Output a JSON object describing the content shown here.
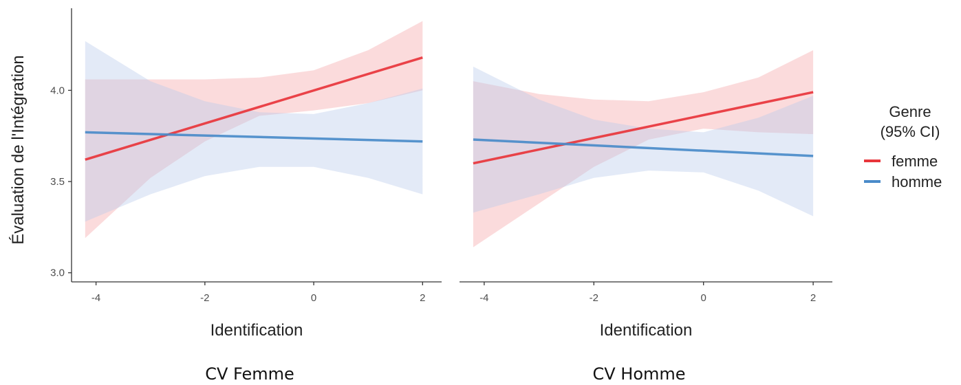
{
  "chart_data": {
    "type": "line",
    "ylabel": "Évaluation de l'Intégration",
    "ylim": [
      2.95,
      4.45
    ],
    "xlim": [
      -4.45,
      2.35
    ],
    "x_ticks": [
      "-4",
      "-2",
      "0",
      "2"
    ],
    "y_ticks": [
      "3.0",
      "3.5",
      "4.0"
    ],
    "legend": {
      "title": [
        "Genre",
        "(95% CI)"
      ],
      "placement": "right",
      "entries": [
        {
          "label": "femme",
          "color": "#e8353b"
        },
        {
          "label": "homme",
          "color": "#4a8bc9"
        }
      ]
    },
    "panels": [
      {
        "xlabel": "Identification",
        "caption": "CV Femme",
        "series": [
          {
            "name": "femme",
            "color": "#e8353b",
            "fill": "#f4a6a8",
            "x": [
              -4.2,
              2.0
            ],
            "y": [
              3.62,
              4.18
            ],
            "ci": {
              "x": [
                -4.2,
                -3,
                -2,
                -1,
                0,
                1,
                2
              ],
              "lower": [
                3.19,
                3.52,
                3.72,
                3.86,
                3.89,
                3.93,
                4.0
              ],
              "upper": [
                4.06,
                4.06,
                4.06,
                4.07,
                4.11,
                4.22,
                4.38
              ]
            }
          },
          {
            "name": "homme",
            "color": "#4a8bc9",
            "fill": "#b9cbec",
            "x": [
              -4.2,
              2.0
            ],
            "y": [
              3.77,
              3.72
            ],
            "ci": {
              "x": [
                -4.2,
                -3,
                -2,
                -1,
                0,
                1,
                2
              ],
              "lower": [
                3.28,
                3.43,
                3.53,
                3.58,
                3.58,
                3.52,
                3.43
              ],
              "upper": [
                4.27,
                4.05,
                3.94,
                3.88,
                3.87,
                3.93,
                4.01
              ]
            }
          }
        ]
      },
      {
        "xlabel": "Identification",
        "caption": "CV Homme",
        "series": [
          {
            "name": "femme",
            "color": "#e8353b",
            "fill": "#f4a6a8",
            "x": [
              -4.2,
              2.0
            ],
            "y": [
              3.6,
              3.99
            ],
            "ci": {
              "x": [
                -4.2,
                -3,
                -2,
                -1,
                0,
                1,
                2
              ],
              "lower": [
                3.14,
                3.38,
                3.58,
                3.73,
                3.79,
                3.77,
                3.76
              ],
              "upper": [
                4.05,
                3.98,
                3.95,
                3.94,
                3.99,
                4.07,
                4.22
              ]
            }
          },
          {
            "name": "homme",
            "color": "#4a8bc9",
            "fill": "#b9cbec",
            "x": [
              -4.2,
              2.0
            ],
            "y": [
              3.73,
              3.64
            ],
            "ci": {
              "x": [
                -4.2,
                -3,
                -2,
                -1,
                0,
                1,
                2
              ],
              "lower": [
                3.33,
                3.43,
                3.52,
                3.56,
                3.55,
                3.45,
                3.31
              ],
              "upper": [
                4.13,
                3.95,
                3.84,
                3.79,
                3.77,
                3.85,
                3.97
              ]
            }
          }
        ]
      }
    ]
  }
}
